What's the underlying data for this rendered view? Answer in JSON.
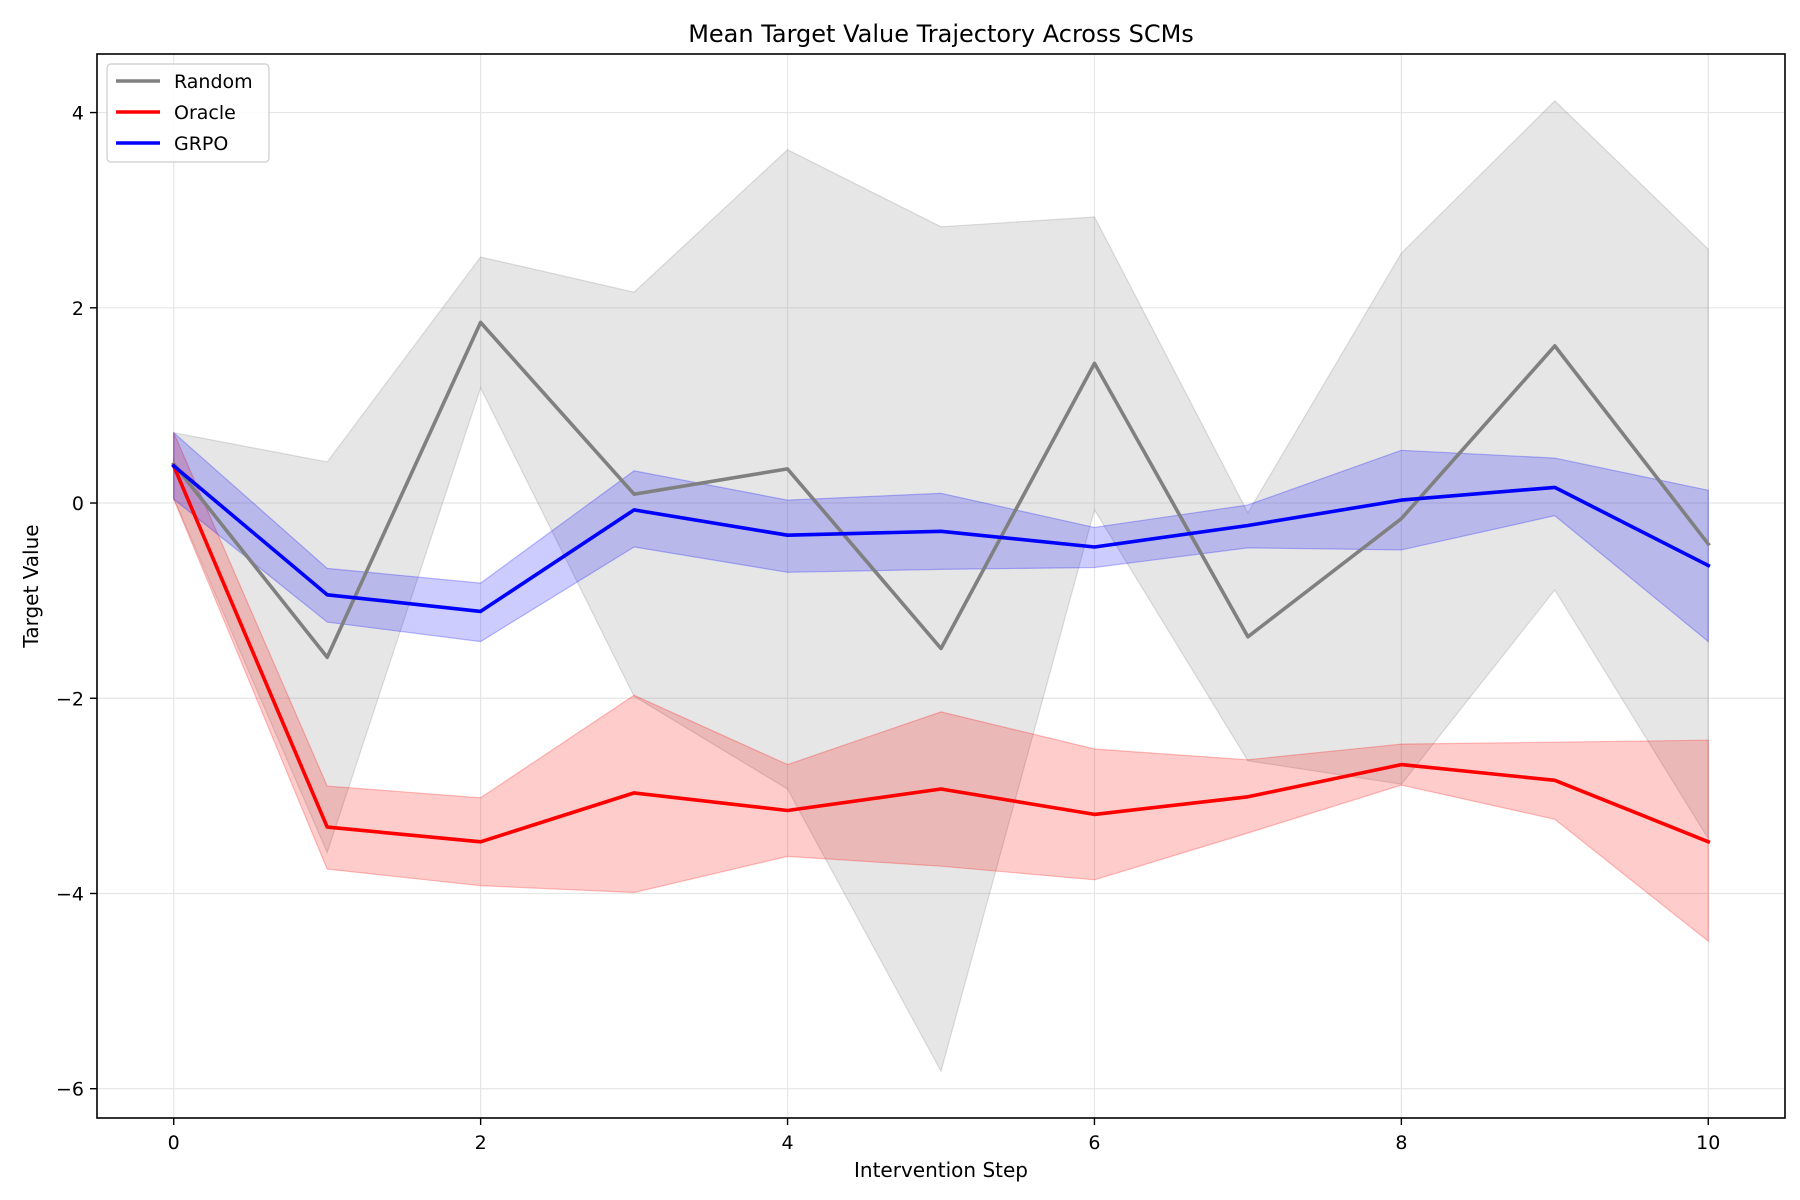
{
  "chart_data": {
    "type": "line",
    "title": "Mean Target Value Trajectory Across SCMs",
    "xlabel": "Intervention Step",
    "ylabel": "Target Value",
    "xlim": [
      -0.5,
      10.5
    ],
    "ylim": [
      -6.3,
      4.6
    ],
    "xticks": [
      0,
      2,
      4,
      6,
      8,
      10
    ],
    "yticks": [
      -6,
      -4,
      -2,
      0,
      2,
      4
    ],
    "ytick_labels": [
      "−6",
      "−4",
      "−2",
      "0",
      "2",
      "4"
    ],
    "xtick_labels": [
      "0",
      "2",
      "4",
      "6",
      "8",
      "10"
    ],
    "grid": true,
    "legend_position": "top-left",
    "x": [
      0,
      1,
      2,
      3,
      4,
      5,
      6,
      7,
      8,
      9,
      10
    ],
    "series": [
      {
        "name": "Random",
        "color": "#808080",
        "values": [
          0.4,
          -1.58,
          1.85,
          0.09,
          0.35,
          -1.49,
          1.43,
          -1.37,
          -0.16,
          1.61,
          -0.42
        ],
        "upper": [
          0.72,
          0.42,
          2.52,
          2.16,
          3.62,
          2.83,
          2.93,
          -0.1,
          2.56,
          4.12,
          2.6
        ],
        "lower": [
          0.05,
          -3.58,
          1.18,
          -1.98,
          -2.93,
          -5.82,
          -0.07,
          -2.64,
          -2.88,
          -0.89,
          -3.44
        ]
      },
      {
        "name": "Oracle",
        "color": "#ff0000",
        "values": [
          0.38,
          -3.32,
          -3.47,
          -2.97,
          -3.15,
          -2.93,
          -3.19,
          -3.01,
          -2.68,
          -2.84,
          -3.47
        ],
        "upper": [
          0.72,
          -2.9,
          -3.02,
          -1.97,
          -2.68,
          -2.14,
          -2.52,
          -2.63,
          -2.47,
          -2.45,
          -2.43
        ],
        "lower": [
          0.04,
          -3.75,
          -3.92,
          -3.99,
          -3.62,
          -3.72,
          -3.86,
          -3.38,
          -2.89,
          -3.24,
          -4.49
        ]
      },
      {
        "name": "GRPO",
        "color": "#0000ff",
        "values": [
          0.38,
          -0.94,
          -1.11,
          -0.07,
          -0.33,
          -0.29,
          -0.45,
          -0.23,
          0.03,
          0.16,
          -0.64
        ],
        "upper": [
          0.72,
          -0.67,
          -0.82,
          0.33,
          0.03,
          0.1,
          -0.25,
          -0.02,
          0.54,
          0.46,
          0.13
        ],
        "lower": [
          0.04,
          -1.22,
          -1.42,
          -0.45,
          -0.71,
          -0.68,
          -0.66,
          -0.46,
          -0.48,
          -0.13,
          -1.42
        ]
      }
    ]
  }
}
